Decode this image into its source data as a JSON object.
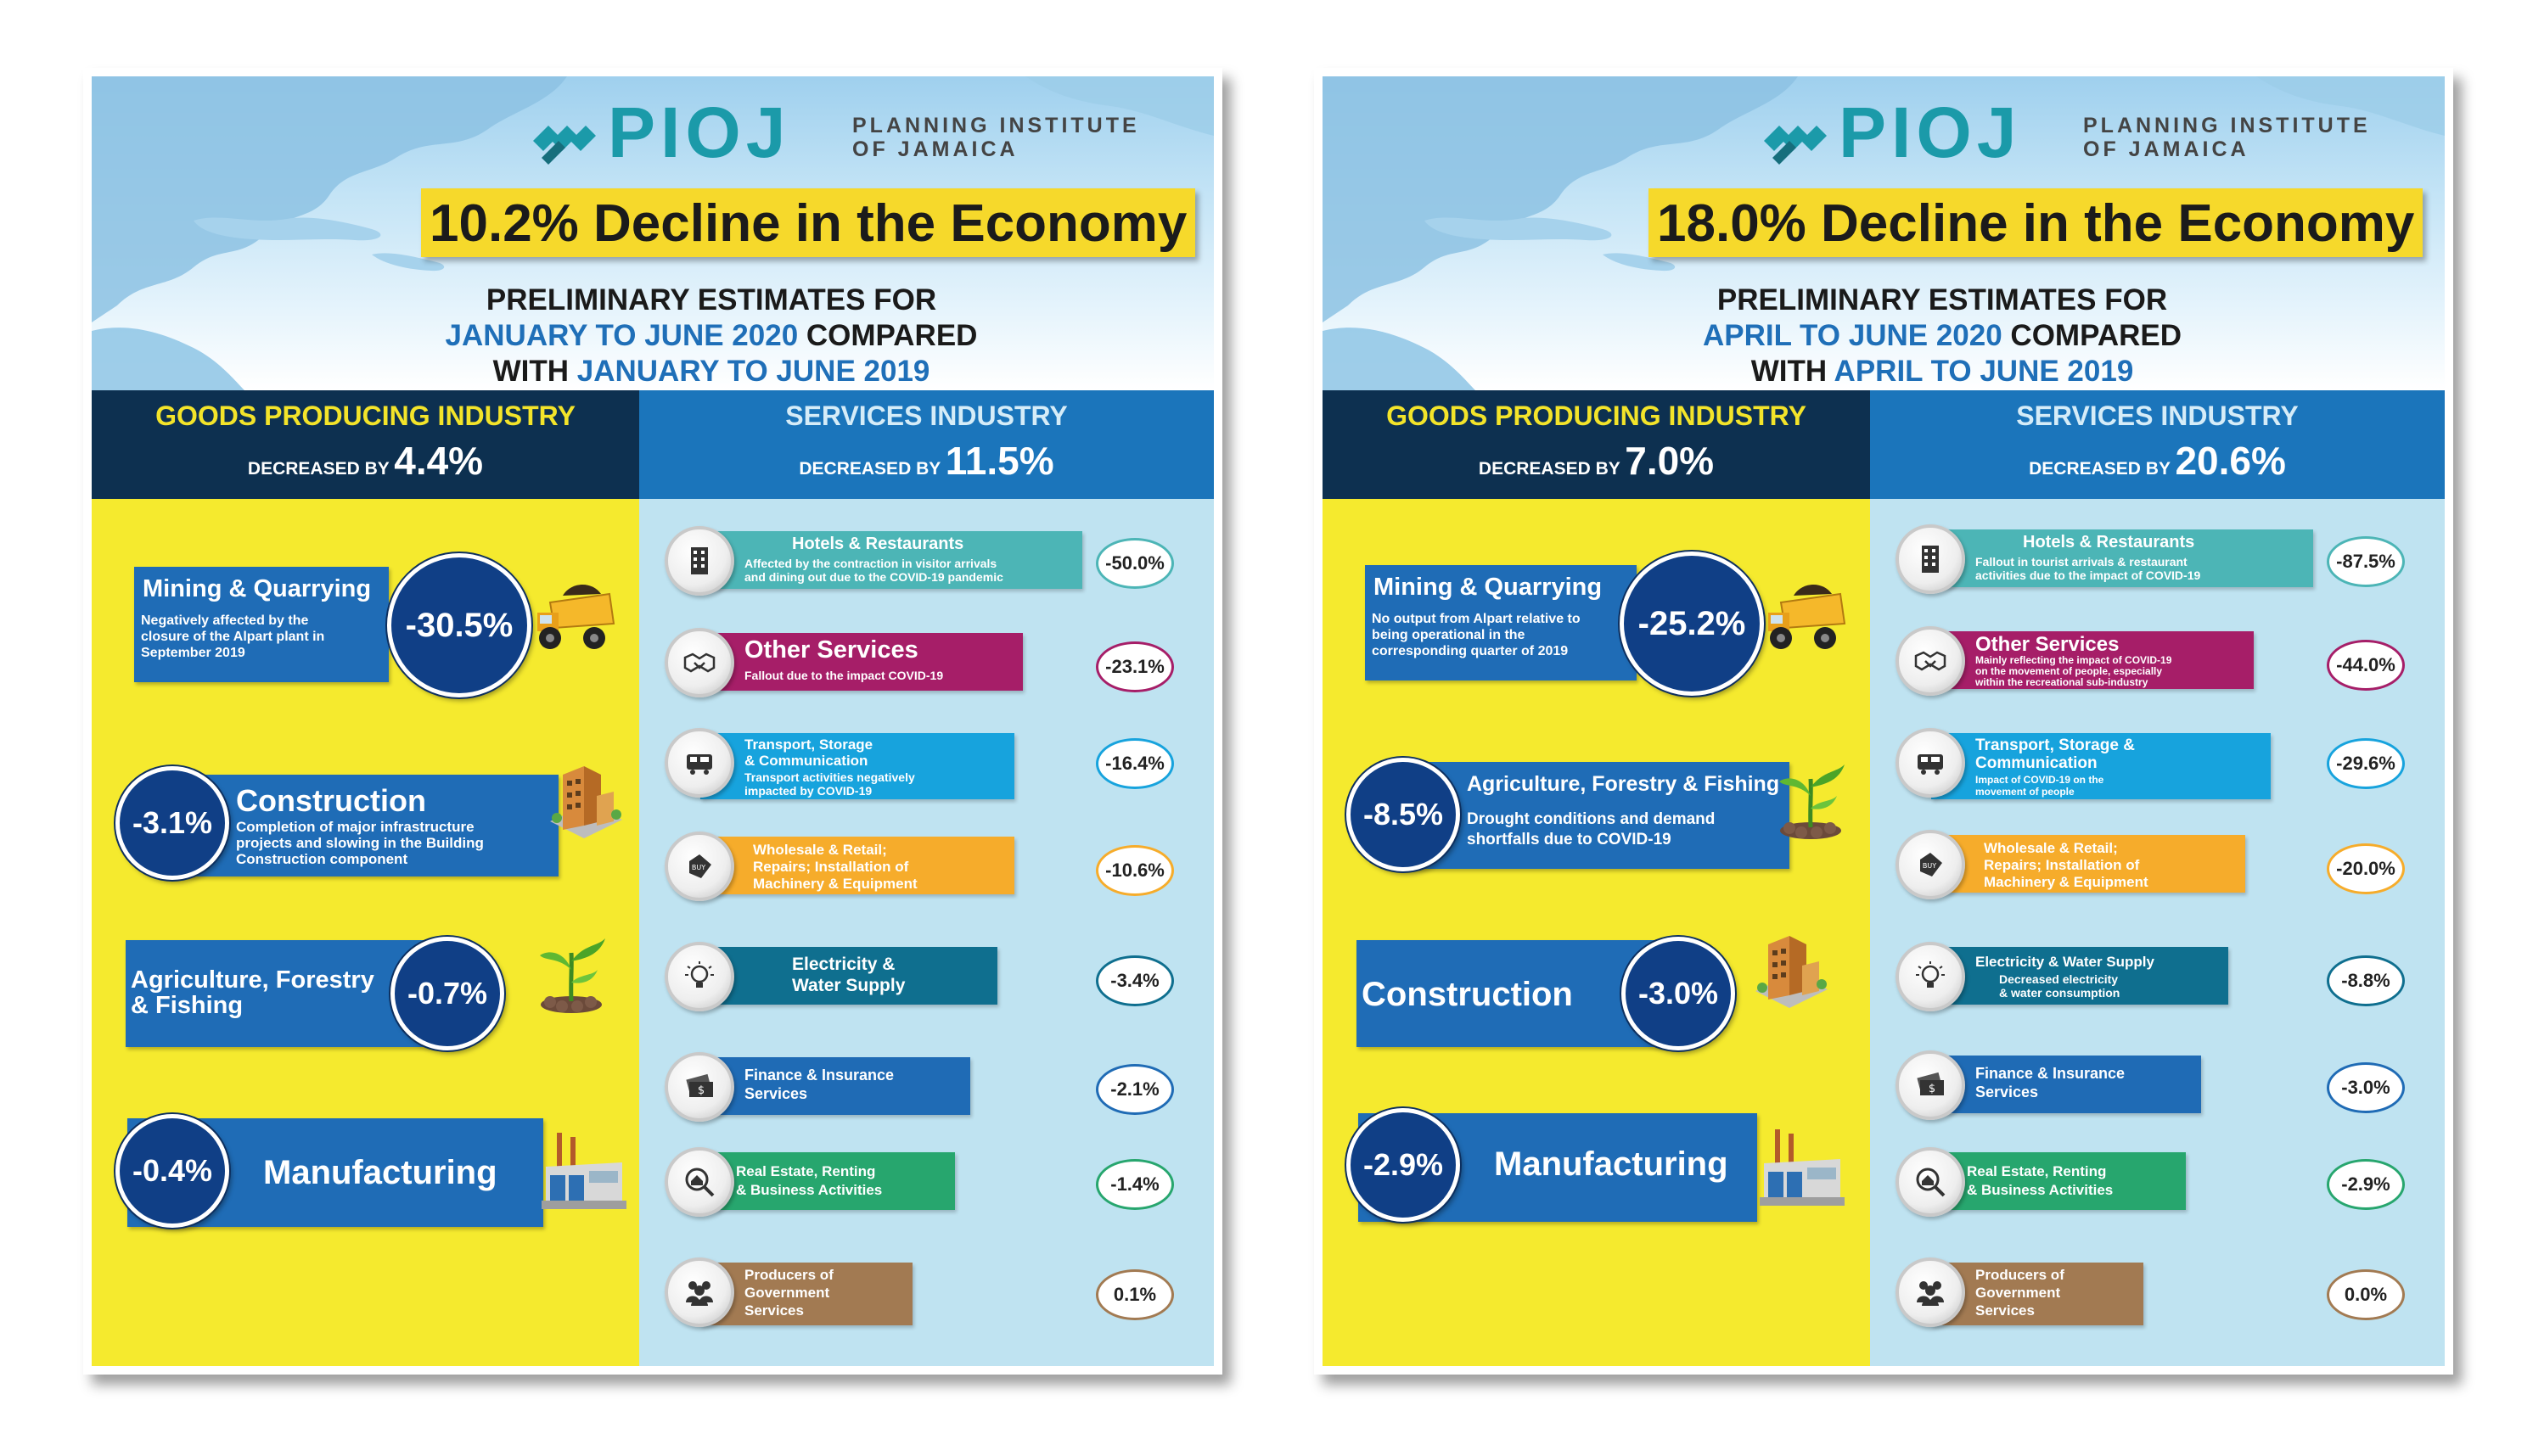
{
  "panels": [
    {
      "logo": {
        "name": "PIOJ",
        "subtitle_line1": "PLANNING INSTITUTE",
        "subtitle_line2": "OF JAMAICA"
      },
      "headline": "10.2% Decline in the Economy",
      "subtitle": {
        "line1": "PRELIMINARY ESTIMATES FOR",
        "period_current": "JANUARY TO JUNE 2020",
        "compared": " COMPARED",
        "with": "WITH ",
        "period_prior": "JANUARY TO JUNE 2019"
      },
      "goods": {
        "title": "GOODS PRODUCING INDUSTRY",
        "decreased_by": "DECREASED BY ",
        "value": "4.4%"
      },
      "services": {
        "title": "SERVICES INDUSTRY",
        "decreased_by": "DECREASED BY ",
        "value": "11.5%"
      },
      "goods_items": [
        {
          "name": "Mining & Quarrying",
          "desc1": "Negatively affected by the",
          "desc2": "closure of the Alpart plant in",
          "desc3": "September 2019",
          "value": "-30.5%",
          "icon": "dump-truck-icon"
        },
        {
          "name": "Construction",
          "desc1": "Completion of major infrastructure",
          "desc2": "projects and slowing in the Building",
          "desc3": "Construction component",
          "value": "-3.1%",
          "icon": "building-icon"
        },
        {
          "name1": "Agriculture, Forestry",
          "name2": "& Fishing",
          "value": "-0.7%",
          "icon": "plant-icon"
        },
        {
          "name": "Manufacturing",
          "value": "-0.4%",
          "icon": "factory-icon"
        }
      ],
      "service_items": [
        {
          "name": "Hotels & Restaurants",
          "desc1": "Affected by the contraction in visitor arrivals",
          "desc2": "and dining out due to the COVID-19 pandemic",
          "value": "-50.0%",
          "color": "#4cb5b6",
          "icon": "hotel-icon"
        },
        {
          "name": "Other Services",
          "desc1": "Fallout due to the impact COVID-19",
          "desc2": "",
          "value": "-23.1%",
          "color": "#a61e68",
          "icon": "handshake-icon"
        },
        {
          "name": "Transport, Storage",
          "name2": "& Communication",
          "desc1": "Transport activities negatively",
          "desc2": "impacted by COVID-19",
          "value": "-16.4%",
          "color": "#17a3dd",
          "icon": "train-icon"
        },
        {
          "name": "Wholesale & Retail;",
          "name2": "Repairs; Installation of",
          "name3": "Machinery & Equipment",
          "value": "-10.6%",
          "color": "#f6ac2b",
          "icon": "buy-tag-icon"
        },
        {
          "name": "Electricity &",
          "name2": "Water Supply",
          "value": "-3.4%",
          "color": "#0f6f8f",
          "icon": "lightbulb-icon"
        },
        {
          "name": "Finance & Insurance",
          "name2": "Services",
          "value": "-2.1%",
          "color": "#1f6bb5",
          "icon": "money-icon"
        },
        {
          "name": "Real Estate, Renting",
          "name2": "& Business Activities",
          "value": "-1.4%",
          "color": "#27a66e",
          "icon": "house-search-icon"
        },
        {
          "name": "Producers of",
          "name2": "Government",
          "name3": "Services",
          "value": "0.1%",
          "color": "#a27a52",
          "icon": "people-icon"
        }
      ]
    },
    {
      "logo": {
        "name": "PIOJ",
        "subtitle_line1": "PLANNING INSTITUTE",
        "subtitle_line2": "OF JAMAICA"
      },
      "headline": "18.0% Decline in the Economy",
      "subtitle": {
        "line1": "PRELIMINARY ESTIMATES FOR",
        "period_current": "APRIL TO JUNE 2020",
        "compared": " COMPARED",
        "with": "WITH ",
        "period_prior": "APRIL TO JUNE 2019"
      },
      "goods": {
        "title": "GOODS PRODUCING INDUSTRY",
        "decreased_by": "DECREASED BY ",
        "value": "7.0%"
      },
      "services": {
        "title": "SERVICES INDUSTRY",
        "decreased_by": "DECREASED BY ",
        "value": "20.6%"
      },
      "goods_items": [
        {
          "name": "Mining & Quarrying",
          "desc1": "No output from Alpart relative to",
          "desc2": "being operational in the",
          "desc3": "corresponding quarter of 2019",
          "value": "-25.2%",
          "icon": "dump-truck-icon"
        },
        {
          "name": "Agriculture, Forestry & Fishing",
          "desc1": "Drought conditions and demand",
          "desc2": "shortfalls due to COVID-19",
          "value": "-8.5%",
          "icon": "plant-icon"
        },
        {
          "name": "Construction",
          "value": "-3.0%",
          "icon": "building-icon"
        },
        {
          "name": "Manufacturing",
          "value": "-2.9%",
          "icon": "factory-icon"
        }
      ],
      "service_items": [
        {
          "name": "Hotels & Restaurants",
          "desc1": "Fallout in tourist arrivals & restaurant",
          "desc2": "activities due to the impact of COVID-19",
          "value": "-87.5%",
          "color": "#4cb5b6",
          "icon": "hotel-icon"
        },
        {
          "name": "Other Services",
          "desc1": "Mainly reflecting the impact of COVID-19",
          "desc2": "on the movement of people, especially",
          "desc3": "within the recreational sub-industry",
          "value": "-44.0%",
          "color": "#a61e68",
          "icon": "handshake-icon"
        },
        {
          "name": "Transport, Storage &",
          "name2": "Communication",
          "desc1": "Impact of COVID-19 on the",
          "desc2": "movement of people",
          "value": "-29.6%",
          "color": "#17a3dd",
          "icon": "train-icon"
        },
        {
          "name": "Wholesale & Retail;",
          "name2": "Repairs; Installation of",
          "name3": "Machinery & Equipment",
          "value": "-20.0%",
          "color": "#f6ac2b",
          "icon": "buy-tag-icon"
        },
        {
          "name": "Electricity & Water Supply",
          "desc1": "Decreased electricity",
          "desc2": "& water consumption",
          "value": "-8.8%",
          "color": "#0f6f8f",
          "icon": "lightbulb-icon"
        },
        {
          "name": "Finance & Insurance",
          "name2": "Services",
          "value": "-3.0%",
          "color": "#1f6bb5",
          "icon": "money-icon"
        },
        {
          "name": "Real Estate, Renting",
          "name2": "& Business Activities",
          "value": "-2.9%",
          "color": "#27a66e",
          "icon": "house-search-icon"
        },
        {
          "name": "Producers of",
          "name2": "Government",
          "name3": "Services",
          "value": "0.0%",
          "color": "#a27a52",
          "icon": "people-icon"
        }
      ]
    }
  ]
}
